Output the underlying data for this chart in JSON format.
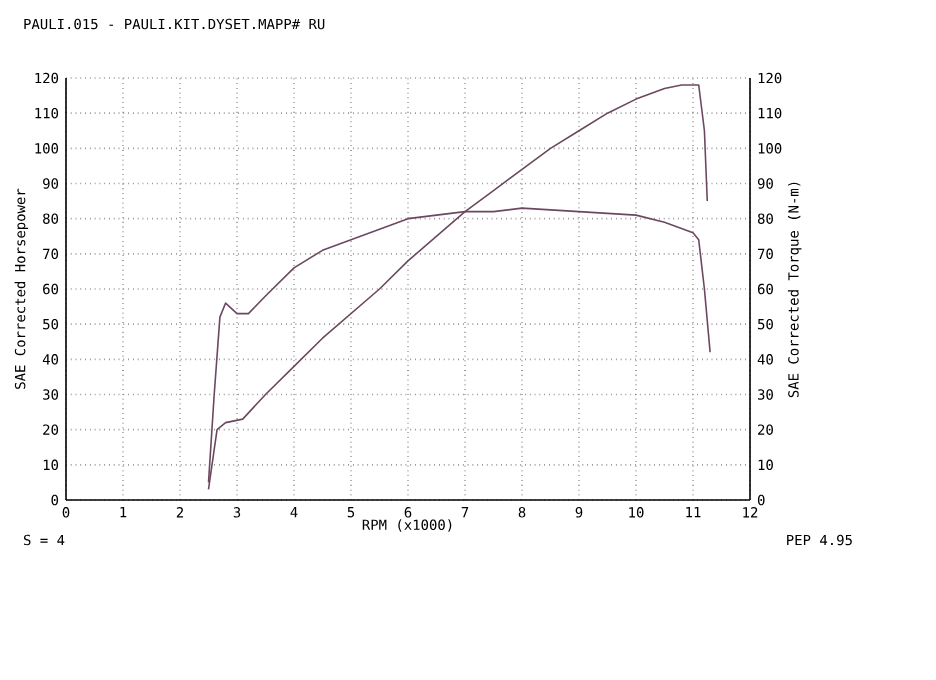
{
  "chart_data": {
    "type": "line",
    "title": "PAULI.015 - PAULI.KIT.DYSET.MAPP# RU",
    "xlabel": "RPM (x1000)",
    "ylabel": "SAE Corrected Horsepower",
    "y2label": "SAE Corrected Torque (N-m)",
    "xlim": [
      0,
      12
    ],
    "xticks": [
      0,
      1,
      2,
      3,
      4,
      5,
      6,
      7,
      8,
      9,
      10,
      11,
      12
    ],
    "ylim": [
      0,
      120
    ],
    "yticks": [
      0,
      10,
      20,
      30,
      40,
      50,
      60,
      70,
      80,
      90,
      100,
      110,
      120
    ],
    "y2lim": [
      0,
      120
    ],
    "y2ticks": [
      0,
      10,
      20,
      30,
      40,
      50,
      60,
      70,
      80,
      90,
      100,
      110,
      120
    ],
    "grid": true,
    "series": [
      {
        "color": "#6b4860",
        "x": [
          2.5,
          2.65,
          2.8,
          3.1,
          3.5,
          4,
          4.5,
          5,
          5.5,
          6,
          6.5,
          7,
          7.5,
          8,
          8.5,
          9,
          9.5,
          10,
          10.5,
          10.8,
          11.1,
          11.2,
          11.25
        ],
        "values": [
          3,
          20,
          22,
          23,
          30,
          38,
          46,
          53,
          60,
          68,
          75,
          82,
          88,
          94,
          100,
          105,
          110,
          114,
          117,
          118,
          118,
          105,
          85
        ]
      },
      {
        "color": "#6b4860",
        "axis": "y2",
        "x": [
          2.5,
          2.6,
          2.7,
          2.8,
          3.0,
          3.2,
          3.5,
          4,
          4.5,
          5,
          5.5,
          6,
          6.5,
          7,
          7.5,
          8,
          9,
          9.5,
          10,
          10.5,
          11,
          11.1,
          11.2,
          11.3
        ],
        "values": [
          5,
          30,
          52,
          56,
          53,
          53,
          58,
          66,
          71,
          74,
          77,
          80,
          81,
          82,
          82,
          83,
          82,
          81.5,
          81,
          79,
          76,
          74,
          60,
          42
        ]
      }
    ],
    "annotations": [
      "S = 4",
      "PEP 4.95"
    ]
  }
}
